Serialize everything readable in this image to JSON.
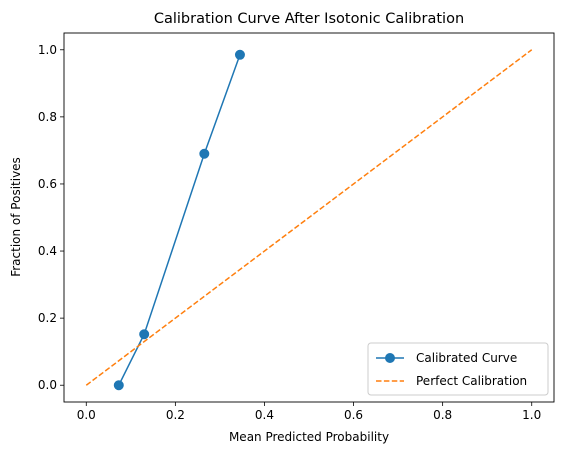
{
  "chart_data": {
    "type": "line",
    "title": "Calibration Curve After Isotonic Calibration",
    "xlabel": "Mean Predicted Probability",
    "ylabel": "Fraction of Positives",
    "xlim": [
      -0.05,
      1.05
    ],
    "ylim": [
      -0.05,
      1.05
    ],
    "xticks": [
      "0.0",
      "0.2",
      "0.4",
      "0.6",
      "0.8",
      "1.0"
    ],
    "yticks": [
      "0.0",
      "0.2",
      "0.4",
      "0.6",
      "0.8",
      "1.0"
    ],
    "grid": false,
    "legend_position": "lower-right",
    "series": [
      {
        "name": "Calibrated Curve",
        "color": "#1f77b4",
        "style": "solid",
        "marker": "circle",
        "x": [
          0.073,
          0.13,
          0.265,
          0.345
        ],
        "y": [
          0.0,
          0.152,
          0.69,
          0.985
        ]
      },
      {
        "name": "Perfect Calibration",
        "color": "#ff7f0e",
        "style": "dashed",
        "marker": "none",
        "x": [
          0.0,
          1.0
        ],
        "y": [
          0.0,
          1.0
        ]
      }
    ]
  }
}
